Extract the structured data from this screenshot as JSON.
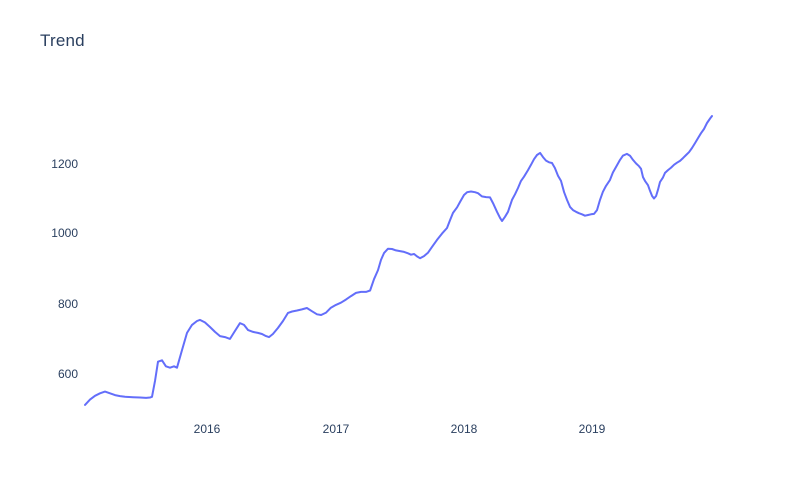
{
  "chart": {
    "title": "Trend",
    "text_color": "#2a3f5f",
    "background_color": "#ffffff",
    "y_ticks": [
      {
        "label": "1200"
      },
      {
        "label": "1000"
      },
      {
        "label": "800"
      },
      {
        "label": "600"
      }
    ],
    "x_ticks": [
      {
        "label": "2016"
      },
      {
        "label": "2017"
      },
      {
        "label": "2018"
      },
      {
        "label": "2019"
      }
    ]
  },
  "chart_data": {
    "type": "line",
    "title": "Trend",
    "xlabel": "",
    "ylabel": "",
    "x_tick_values": [
      2016,
      2017,
      2018,
      2019
    ],
    "y_tick_values": [
      600,
      800,
      1000,
      1200
    ],
    "x_range": [
      2014.95,
      2020.0
    ],
    "y_range": [
      480,
      1420
    ],
    "grid": false,
    "legend": false,
    "series": [
      {
        "name": "trend",
        "color": "#636EFA",
        "line_width": 2,
        "points": [
          [
            2015.049,
            512
          ],
          [
            2015.088,
            527
          ],
          [
            2015.127,
            538
          ],
          [
            2015.166,
            545
          ],
          [
            2015.205,
            550
          ],
          [
            2015.244,
            545
          ],
          [
            2015.283,
            540
          ],
          [
            2015.322,
            537
          ],
          [
            2015.361,
            535
          ],
          [
            2015.423,
            534
          ],
          [
            2015.478,
            533
          ],
          [
            2015.525,
            532
          ],
          [
            2015.556,
            533
          ],
          [
            2015.571,
            535
          ],
          [
            2015.595,
            580
          ],
          [
            2015.618,
            635
          ],
          [
            2015.649,
            639
          ],
          [
            2015.68,
            622
          ],
          [
            2015.712,
            618
          ],
          [
            2015.743,
            622
          ],
          [
            2015.766,
            618
          ],
          [
            2015.805,
            668
          ],
          [
            2015.844,
            717
          ],
          [
            2015.883,
            740
          ],
          [
            2015.922,
            751
          ],
          [
            2015.945,
            754
          ],
          [
            2015.984,
            747
          ],
          [
            2016.023,
            734
          ],
          [
            2016.062,
            720
          ],
          [
            2016.101,
            708
          ],
          [
            2016.14,
            705
          ],
          [
            2016.179,
            700
          ],
          [
            2016.21,
            718
          ],
          [
            2016.257,
            745
          ],
          [
            2016.288,
            740
          ],
          [
            2016.32,
            725
          ],
          [
            2016.359,
            720
          ],
          [
            2016.397,
            717
          ],
          [
            2016.429,
            714
          ],
          [
            2016.46,
            708
          ],
          [
            2016.483,
            705
          ],
          [
            2016.514,
            714
          ],
          [
            2016.553,
            731
          ],
          [
            2016.592,
            751
          ],
          [
            2016.631,
            774
          ],
          [
            2016.663,
            778
          ],
          [
            2016.702,
            781
          ],
          [
            2016.74,
            784
          ],
          [
            2016.779,
            788
          ],
          [
            2016.818,
            779
          ],
          [
            2016.857,
            770
          ],
          [
            2016.889,
            768
          ],
          [
            2016.928,
            775
          ],
          [
            2016.966,
            789
          ],
          [
            2017.005,
            797
          ],
          [
            2017.044,
            803
          ],
          [
            2017.083,
            812
          ],
          [
            2017.122,
            822
          ],
          [
            2017.161,
            831
          ],
          [
            2017.2,
            834
          ],
          [
            2017.239,
            834
          ],
          [
            2017.271,
            838
          ],
          [
            2017.302,
            870
          ],
          [
            2017.333,
            896
          ],
          [
            2017.356,
            925
          ],
          [
            2017.38,
            945
          ],
          [
            2017.411,
            957
          ],
          [
            2017.442,
            956
          ],
          [
            2017.473,
            952
          ],
          [
            2017.504,
            950
          ],
          [
            2017.536,
            948
          ],
          [
            2017.567,
            944
          ],
          [
            2017.59,
            940
          ],
          [
            2017.614,
            942
          ],
          [
            2017.637,
            935
          ],
          [
            2017.66,
            930
          ],
          [
            2017.691,
            936
          ],
          [
            2017.723,
            946
          ],
          [
            2017.754,
            962
          ],
          [
            2017.793,
            982
          ],
          [
            2017.832,
            1000
          ],
          [
            2017.871,
            1016
          ],
          [
            2017.894,
            1038
          ],
          [
            2017.917,
            1059
          ],
          [
            2017.949,
            1075
          ],
          [
            2017.972,
            1090
          ],
          [
            2018.003,
            1110
          ],
          [
            2018.027,
            1118
          ],
          [
            2018.058,
            1120
          ],
          [
            2018.089,
            1118
          ],
          [
            2018.112,
            1115
          ],
          [
            2018.143,
            1106
          ],
          [
            2018.175,
            1104
          ],
          [
            2018.206,
            1103
          ],
          [
            2018.229,
            1087
          ],
          [
            2018.26,
            1062
          ],
          [
            2018.284,
            1045
          ],
          [
            2018.299,
            1036
          ],
          [
            2018.323,
            1048
          ],
          [
            2018.346,
            1062
          ],
          [
            2018.377,
            1096
          ],
          [
            2018.401,
            1112
          ],
          [
            2018.424,
            1130
          ],
          [
            2018.447,
            1150
          ],
          [
            2018.471,
            1162
          ],
          [
            2018.502,
            1181
          ],
          [
            2018.525,
            1196
          ],
          [
            2018.549,
            1212
          ],
          [
            2018.572,
            1224
          ],
          [
            2018.596,
            1230
          ],
          [
            2018.619,
            1218
          ],
          [
            2018.642,
            1208
          ],
          [
            2018.666,
            1203
          ],
          [
            2018.689,
            1201
          ],
          [
            2018.712,
            1187
          ],
          [
            2018.736,
            1165
          ],
          [
            2018.759,
            1150
          ],
          [
            2018.783,
            1118
          ],
          [
            2018.806,
            1096
          ],
          [
            2018.829,
            1076
          ],
          [
            2018.853,
            1067
          ],
          [
            2018.876,
            1062
          ],
          [
            2018.899,
            1058
          ],
          [
            2018.923,
            1055
          ],
          [
            2018.946,
            1051
          ],
          [
            2018.97,
            1053
          ],
          [
            2018.993,
            1055
          ],
          [
            2019.016,
            1056
          ],
          [
            2019.04,
            1067
          ],
          [
            2019.063,
            1096
          ],
          [
            2019.086,
            1119
          ],
          [
            2019.11,
            1136
          ],
          [
            2019.141,
            1153
          ],
          [
            2019.164,
            1174
          ],
          [
            2019.196,
            1195
          ],
          [
            2019.219,
            1210
          ],
          [
            2019.242,
            1222
          ],
          [
            2019.273,
            1227
          ],
          [
            2019.297,
            1222
          ],
          [
            2019.32,
            1210
          ],
          [
            2019.344,
            1200
          ],
          [
            2019.367,
            1192
          ],
          [
            2019.383,
            1185
          ],
          [
            2019.398,
            1161
          ],
          [
            2019.414,
            1150
          ],
          [
            2019.437,
            1138
          ],
          [
            2019.453,
            1122
          ],
          [
            2019.469,
            1107
          ],
          [
            2019.484,
            1100
          ],
          [
            2019.5,
            1107
          ],
          [
            2019.515,
            1125
          ],
          [
            2019.531,
            1147
          ],
          [
            2019.554,
            1160
          ],
          [
            2019.57,
            1173
          ],
          [
            2019.593,
            1181
          ],
          [
            2019.617,
            1188
          ],
          [
            2019.64,
            1196
          ],
          [
            2019.663,
            1202
          ],
          [
            2019.687,
            1207
          ],
          [
            2019.71,
            1215
          ],
          [
            2019.734,
            1224
          ],
          [
            2019.757,
            1232
          ],
          [
            2019.78,
            1244
          ],
          [
            2019.804,
            1258
          ],
          [
            2019.827,
            1272
          ],
          [
            2019.85,
            1286
          ],
          [
            2019.874,
            1298
          ],
          [
            2019.897,
            1315
          ],
          [
            2019.921,
            1328
          ],
          [
            2019.936,
            1335
          ]
        ]
      }
    ]
  }
}
